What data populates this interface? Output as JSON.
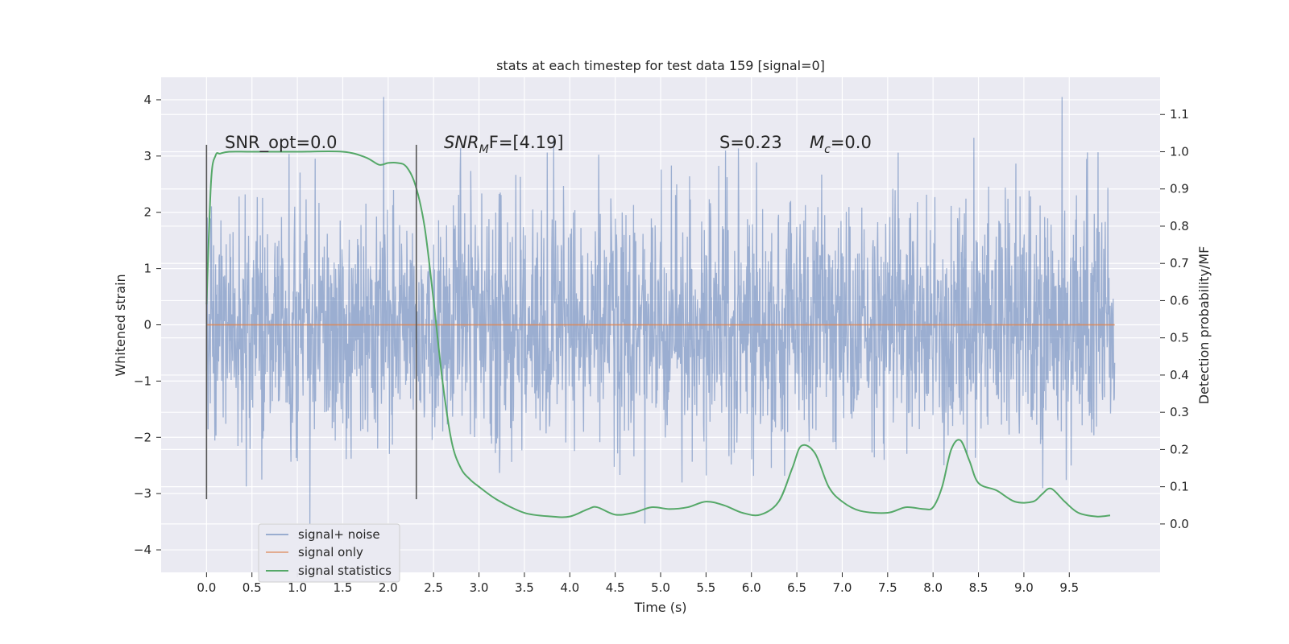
{
  "chart_data": {
    "type": "line",
    "title": "stats at each timestep for test data 159 [signal=0]",
    "xlabel": "Time (s)",
    "ylabel_left": "Whitened strain",
    "ylabel_right": "Detection probability/MF",
    "xlim": [
      -0.5,
      10.5
    ],
    "ylim_left": [
      -4.4,
      4.4
    ],
    "ylim_right": [
      -0.13,
      1.2
    ],
    "x_ticks": [
      0.0,
      0.5,
      1.0,
      1.5,
      2.0,
      2.5,
      3.0,
      3.5,
      4.0,
      4.5,
      5.0,
      5.5,
      6.0,
      6.5,
      7.0,
      7.5,
      8.0,
      8.5,
      9.0,
      9.5
    ],
    "x_tick_labels": [
      "0.0",
      "0.5",
      "1.0",
      "1.5",
      "2.0",
      "2.5",
      "3.0",
      "3.5",
      "4.0",
      "4.5",
      "5.0",
      "5.5",
      "6.0",
      "6.5",
      "7.0",
      "7.5",
      "8.0",
      "8.5",
      "9.0",
      "9.5"
    ],
    "y_left_ticks": [
      -4,
      -3,
      -2,
      -1,
      0,
      1,
      2,
      3,
      4
    ],
    "y_left_tick_labels": [
      "−4",
      "−3",
      "−2",
      "−1",
      "0",
      "1",
      "2",
      "3",
      "4"
    ],
    "y_right_ticks": [
      0.0,
      0.1,
      0.2,
      0.3,
      0.4,
      0.5,
      0.6,
      0.7,
      0.8,
      0.9,
      1.0,
      1.1
    ],
    "y_right_tick_labels": [
      "0.0",
      "0.1",
      "0.2",
      "0.3",
      "0.4",
      "0.5",
      "0.6",
      "0.7",
      "0.8",
      "0.9",
      "1.0",
      "1.1"
    ],
    "grid": true,
    "legend_position": "bottom-left",
    "series": [
      {
        "name": "signal+ noise",
        "axis": "left",
        "color": "#4c72b0",
        "style": "dense noise trace, approx. range -3.9 to 4.05",
        "x_range": [
          0.0,
          10.0
        ]
      },
      {
        "name": "signal only",
        "axis": "left",
        "color": "#dd8452",
        "x": [
          0.0,
          10.0
        ],
        "y": [
          0.0,
          0.0
        ]
      },
      {
        "name": "signal statistics",
        "axis": "right",
        "color": "#55a868",
        "x": [
          0.0,
          0.05,
          0.1,
          0.15,
          0.25,
          0.5,
          1.0,
          1.5,
          1.75,
          1.9,
          2.0,
          2.1,
          2.2,
          2.3,
          2.4,
          2.5,
          2.6,
          2.7,
          2.8,
          2.9,
          3.0,
          3.2,
          3.5,
          3.8,
          4.0,
          4.2,
          4.3,
          4.5,
          4.7,
          4.9,
          5.1,
          5.3,
          5.5,
          5.7,
          5.9,
          6.1,
          6.3,
          6.45,
          6.55,
          6.7,
          6.85,
          7.0,
          7.2,
          7.5,
          7.7,
          7.9,
          8.0,
          8.1,
          8.2,
          8.3,
          8.4,
          8.5,
          8.7,
          8.9,
          9.1,
          9.2,
          9.3,
          9.45,
          9.6,
          9.8,
          9.95
        ],
        "y": [
          0.59,
          0.92,
          0.99,
          0.995,
          1.0,
          1.0,
          1.0,
          1.0,
          0.985,
          0.965,
          0.97,
          0.97,
          0.96,
          0.91,
          0.8,
          0.6,
          0.38,
          0.22,
          0.15,
          0.12,
          0.1,
          0.065,
          0.03,
          0.02,
          0.02,
          0.04,
          0.045,
          0.025,
          0.03,
          0.045,
          0.04,
          0.045,
          0.06,
          0.05,
          0.03,
          0.025,
          0.06,
          0.15,
          0.21,
          0.19,
          0.1,
          0.06,
          0.035,
          0.03,
          0.045,
          0.04,
          0.045,
          0.1,
          0.2,
          0.225,
          0.17,
          0.11,
          0.09,
          0.06,
          0.06,
          0.08,
          0.095,
          0.06,
          0.03,
          0.02,
          0.023
        ]
      }
    ],
    "vertical_lines": [
      {
        "x": 0.0,
        "y_left": [
          -3.1,
          3.2
        ],
        "color": "#555555"
      },
      {
        "x": 2.31,
        "y_left": [
          -3.1,
          3.2
        ],
        "color": "#555555"
      }
    ],
    "annotations": {
      "snr_opt": "SNR_opt=0.0",
      "snr_mf_main": "SNR",
      "snr_mf_sub": "M",
      "snr_mf_rest": "F=[4.19]",
      "s_value": "S=0.23",
      "mc_main": "M",
      "mc_sub": "c",
      "mc_rest": "=0.0"
    }
  }
}
